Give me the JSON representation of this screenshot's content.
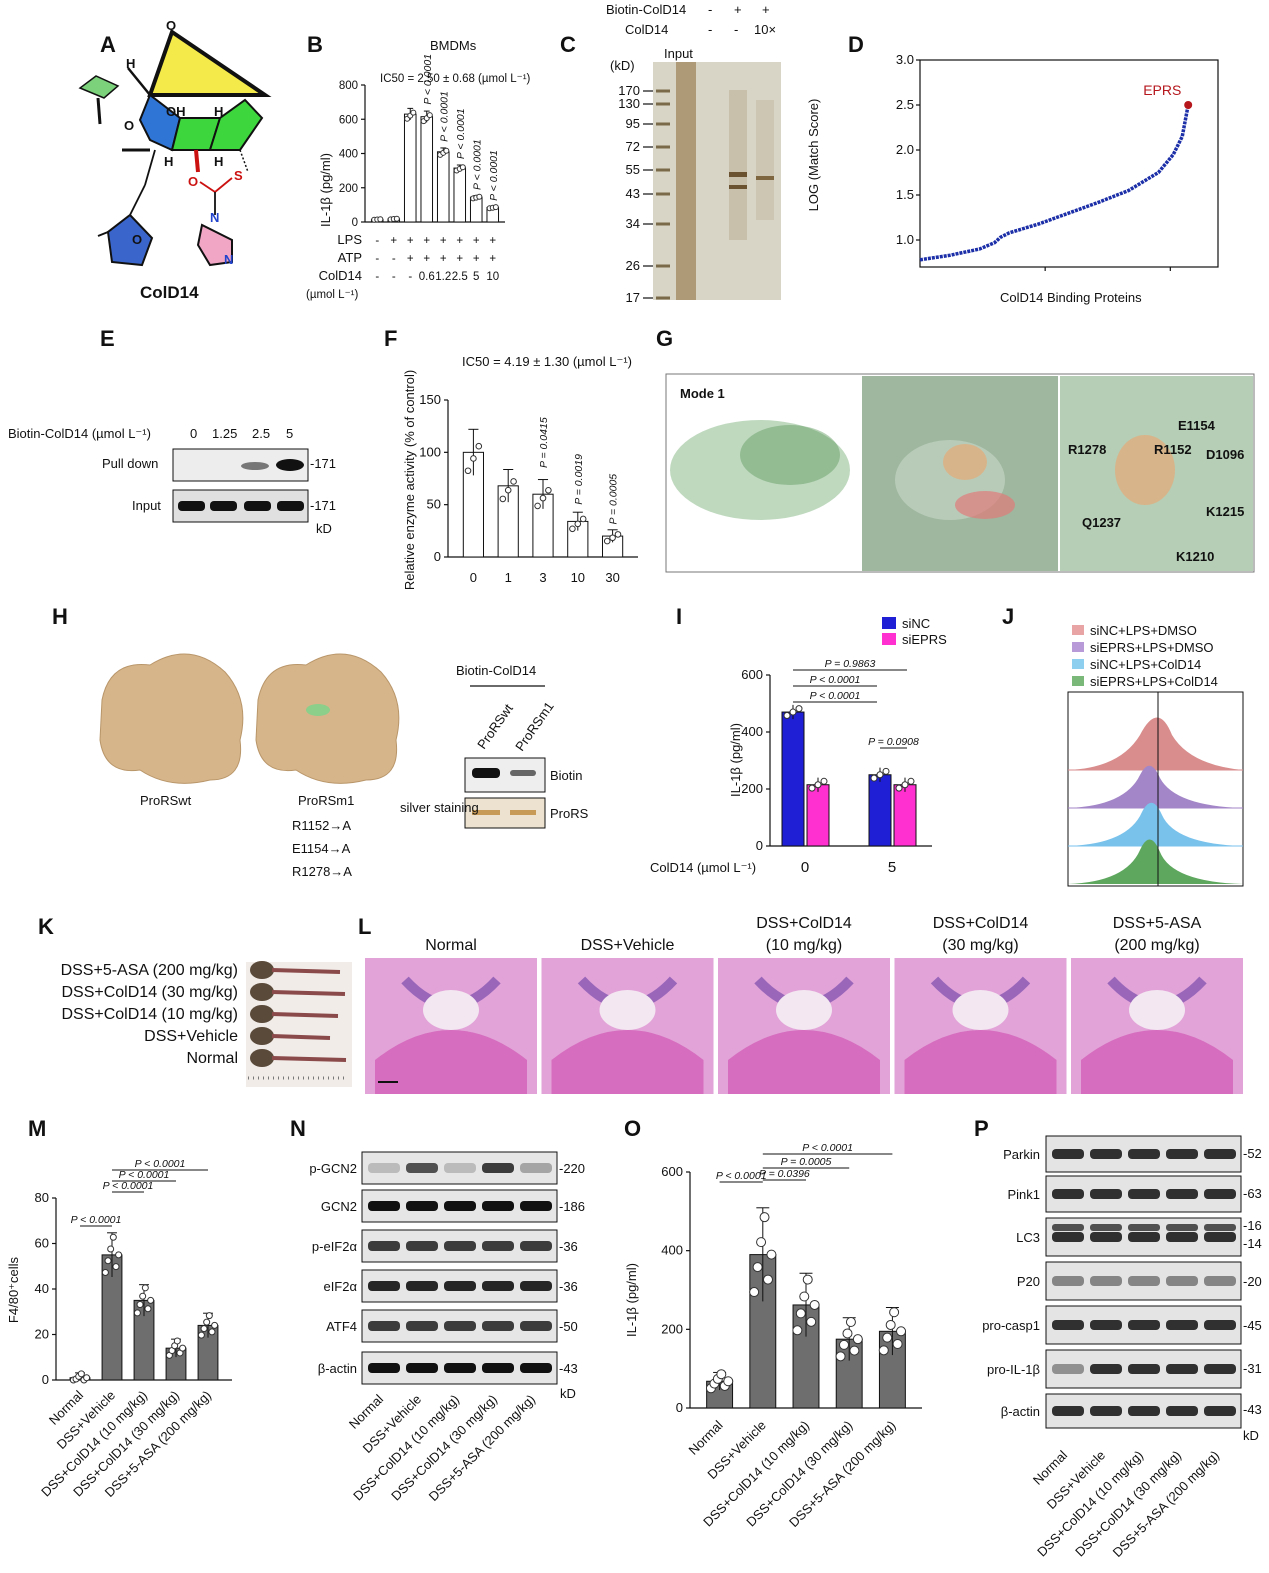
{
  "panels": {
    "A": {
      "label": "A",
      "compound": "ColD14",
      "atoms": [
        "O",
        "H",
        "OH",
        "H",
        "O",
        "H",
        "H",
        "O",
        "S",
        "N",
        "N",
        "O"
      ]
    },
    "B": {
      "label": "B",
      "title": "BMDMs",
      "ic50": "IC50 = 2.50 ± 0.68 (µmol L⁻¹)",
      "ylabel": "IL-1β (pg/ml)",
      "rows": [
        {
          "name": "LPS",
          "cells": [
            "-",
            "+",
            "+",
            "+",
            "+",
            "+",
            "+",
            "+"
          ]
        },
        {
          "name": "ATP",
          "cells": [
            "-",
            "-",
            "+",
            "+",
            "+",
            "+",
            "+",
            "+"
          ]
        },
        {
          "name": "ColD14",
          "cells": [
            "-",
            "-",
            "-",
            "0.6",
            "1.2",
            "2.5",
            "5",
            "10"
          ]
        }
      ],
      "unit": "(µmol L⁻¹)",
      "pvalues": [
        "P < 0.0001",
        "P < 0.0001",
        "P < 0.0001",
        "P < 0.0001",
        "P < 0.0001"
      ]
    },
    "C": {
      "label": "C",
      "header_rows": [
        {
          "name": "Biotin-ColD14",
          "cells": [
            "-",
            "+",
            "+"
          ]
        },
        {
          "name": "ColD14",
          "cells": [
            "-",
            "-",
            "10×"
          ]
        }
      ],
      "input_label": "Input",
      "kd_label": "(kD)",
      "markers": [
        "170",
        "130",
        "95",
        "72",
        "55",
        "43",
        "34",
        "26",
        "17"
      ]
    },
    "D": {
      "label": "D",
      "ylabel": "LOG (Match Score)",
      "xlabel": "ColD14 Binding Proteins",
      "highlight": "EPRS"
    },
    "E": {
      "label": "E",
      "row_header": "Biotin-ColD14 (µmol L⁻¹)",
      "concs": [
        "0",
        "1.25",
        "2.5",
        "5"
      ],
      "rows": [
        "Pull down",
        "Input"
      ],
      "mw": [
        "-171",
        "-171"
      ],
      "kd": "kD"
    },
    "F": {
      "label": "F",
      "ic50": "IC50 = 4.19 ± 1.30 (µmol L⁻¹)",
      "ylabel": "Relative enzyme activity (% of control)",
      "pvalues": [
        "P = 0.0415",
        "P = 0.0019",
        "P = 0.0005"
      ]
    },
    "G": {
      "label": "G",
      "mode": "Mode 1",
      "residues": [
        "E1154",
        "R1278",
        "R1152",
        "D1096",
        "Q1237",
        "K1215",
        "K1210"
      ]
    },
    "H": {
      "label": "H",
      "wt": "ProRSwt",
      "m1": "ProRSm1",
      "mutations": [
        "R1152→A",
        "E1154→A",
        "R1278→A"
      ],
      "blot_title": "Biotin-ColD14",
      "lanes": [
        "ProRSwt",
        "ProRSm1"
      ],
      "rows": [
        "Biotin",
        "ProRS"
      ],
      "silver": "silver staining"
    },
    "I": {
      "label": "I",
      "ylabel": "IL-1β (pg/ml)",
      "legend": [
        "siNC",
        "siEPRS"
      ],
      "xlabel": "ColD14 (µmol L⁻¹)",
      "groups": [
        "0",
        "5"
      ],
      "pvalues": [
        "P = 0.9863",
        "P < 0.0001",
        "P < 0.0001",
        "P = 0.0908"
      ]
    },
    "J": {
      "label": "J",
      "legend": [
        "siNC+LPS+DMSO",
        "siEPRS+LPS+DMSO",
        "siNC+LPS+ColD14",
        "siEPRS+LPS+ColD14"
      ]
    },
    "K": {
      "label": "K",
      "rows": [
        "DSS+5-ASA (200 mg/kg)",
        "DSS+ColD14 (30 mg/kg)",
        "DSS+ColD14 (10 mg/kg)",
        "DSS+Vehicle",
        "Normal"
      ]
    },
    "L": {
      "label": "L",
      "titles": [
        [
          "Normal"
        ],
        [
          "DSS+Vehicle"
        ],
        [
          "DSS+ColD14",
          "(10 mg/kg)"
        ],
        [
          "DSS+ColD14",
          "(30 mg/kg)"
        ],
        [
          "DSS+5-ASA",
          "(200 mg/kg)"
        ]
      ]
    },
    "M": {
      "label": "M",
      "ylabel": "F4/80⁺cells",
      "pvalues": [
        "P < 0.0001",
        "P < 0.0001",
        "P < 0.0001",
        "P < 0.0001"
      ]
    },
    "N": {
      "label": "N",
      "rows": [
        "p-GCN2",
        "GCN2",
        "p-eIF2α",
        "eIF2α",
        "ATF4",
        "β-actin"
      ],
      "mw": [
        "-220",
        "-186",
        "-36",
        "-36",
        "-50",
        "-43"
      ],
      "kd": "kD"
    },
    "O": {
      "label": "O",
      "ylabel": "IL-1β (pg/ml)",
      "pvalues": [
        "P < 0.0001",
        "P = 0.0005",
        "P = 0.0396",
        "P < 0.0001"
      ]
    },
    "P": {
      "label": "P",
      "rows": [
        "Parkin",
        "Pink1",
        "LC3",
        "P20",
        "pro-casp1",
        "pro-IL-1β",
        "β-actin"
      ],
      "mw": [
        "-52",
        "-63",
        "-16",
        "-14",
        "-20",
        "-45",
        "-31",
        "-43"
      ],
      "kd": "kD"
    }
  },
  "groups_dss": [
    "Normal",
    "DSS+Vehicle",
    "DSS+ColD14 (10 mg/kg)",
    "DSS+ColD14 (30 mg/kg)",
    "DSS+5-ASA (200 mg/kg)"
  ],
  "chart_data": [
    {
      "type": "bar",
      "title": "BMDMs",
      "ylabel": "IL-1β (pg/ml)",
      "ylim": [
        0,
        800
      ],
      "categories": [
        "-/-/-",
        "+/-/-",
        "+/+/-",
        "+/+/0.6",
        "+/+/1.2",
        "+/+/2.5",
        "+/+/5",
        "+/+/10"
      ],
      "values": [
        15,
        18,
        630,
        615,
        410,
        315,
        145,
        85
      ],
      "ticks": [
        0,
        200,
        400,
        600,
        800
      ]
    },
    {
      "type": "line",
      "ylabel": "LOG (Match Score)",
      "xlabel": "ColD14 Binding Proteins",
      "ylim": [
        0.7,
        3.0
      ],
      "x": [
        0,
        0.1,
        0.2,
        0.25,
        0.27,
        0.3,
        0.4,
        0.5,
        0.6,
        0.7,
        0.8,
        0.85,
        0.88,
        0.9
      ],
      "y": [
        0.78,
        0.83,
        0.9,
        0.97,
        1.03,
        1.08,
        1.18,
        1.3,
        1.42,
        1.55,
        1.75,
        1.95,
        2.15,
        2.5
      ],
      "ticks": [
        1.0,
        1.5,
        2.0,
        2.5,
        3.0
      ],
      "highlight": {
        "name": "EPRS",
        "x": 0.9,
        "y": 2.5
      }
    },
    {
      "type": "bar",
      "ylabel": "Relative enzyme activity (% of control)",
      "categories": [
        "0",
        "1",
        "3",
        "10",
        "30"
      ],
      "values": [
        100,
        68,
        60,
        34,
        20
      ],
      "ylim": [
        0,
        150
      ],
      "ticks": [
        0,
        50,
        100,
        150
      ]
    },
    {
      "type": "bar",
      "ylabel": "IL-1β (pg/ml)",
      "categories": [
        "0",
        "5"
      ],
      "series": [
        {
          "name": "siNC",
          "values": [
            470,
            250
          ]
        },
        {
          "name": "siEPRS",
          "values": [
            215,
            215
          ]
        }
      ],
      "ylim": [
        0,
        600
      ],
      "ticks": [
        0,
        200,
        400,
        600
      ]
    },
    {
      "type": "bar",
      "ylabel": "F4/80⁺cells",
      "categories": [
        "Normal",
        "DSS+Vehicle",
        "DSS+ColD14 (10 mg/kg)",
        "DSS+ColD14 (30 mg/kg)",
        "DSS+5-ASA (200 mg/kg)"
      ],
      "values": [
        1,
        55,
        35,
        14,
        24
      ],
      "ylim": [
        0,
        80
      ],
      "ticks": [
        0,
        20,
        40,
        60,
        80
      ]
    },
    {
      "type": "bar",
      "ylabel": "IL-1β (pg/ml)",
      "categories": [
        "Normal",
        "DSS+Vehicle",
        "DSS+ColD14 (10 mg/kg)",
        "DSS+ColD14 (30 mg/kg)",
        "DSS+5-ASA (200 mg/kg)"
      ],
      "values": [
        68,
        390,
        262,
        175,
        195
      ],
      "ylim": [
        0,
        600
      ],
      "ticks": [
        0,
        200,
        400,
        600
      ]
    }
  ]
}
